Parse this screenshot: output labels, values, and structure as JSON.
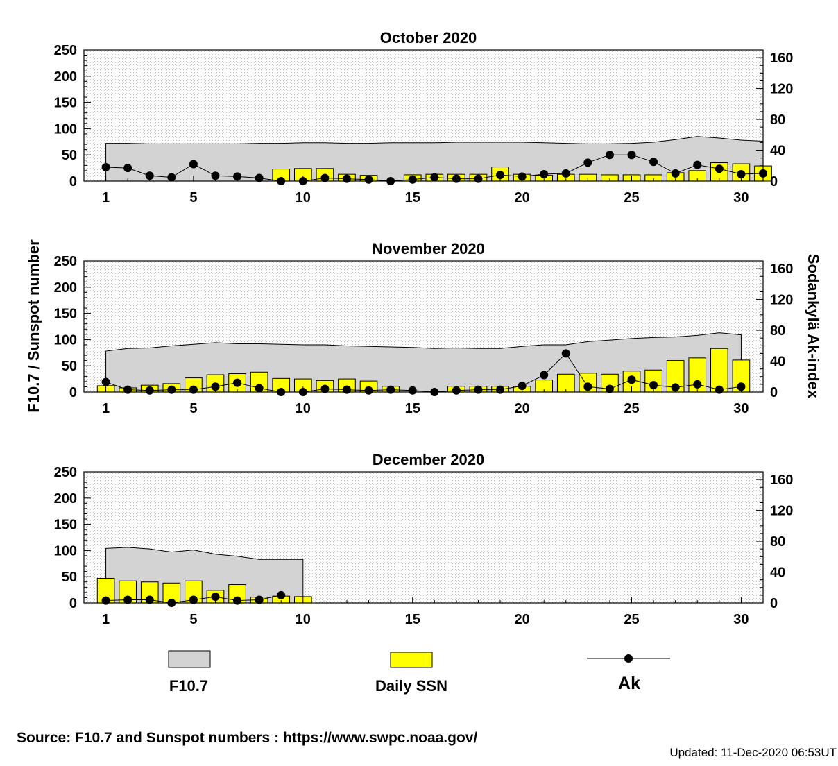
{
  "left_axis_label": "F10.7 / Sunspot number",
  "right_axis_label": "Sodankylä Ak-index",
  "left_ticks": [
    "0",
    "50",
    "100",
    "150",
    "200",
    "250"
  ],
  "right_ticks": [
    "0",
    "40",
    "80",
    "120",
    "160"
  ],
  "x_ticks": [
    "1",
    "5",
    "10",
    "15",
    "20",
    "25",
    "30"
  ],
  "legend": {
    "f107": "F10.7",
    "ssn": "Daily SSN",
    "ak": "Ak"
  },
  "colors": {
    "f107_fill": "#d3d3d3",
    "ssn_fill": "#ffff00",
    "ak_marker": "#000000",
    "grid": "#b4b4b4"
  },
  "footer": {
    "source": "Source: F10.7 and Sunspot numbers : https://www.swpc.noaa.gov/",
    "updated": "Updated: 11-Dec-2020 06:53UT"
  },
  "chart_data": [
    {
      "type": "bar",
      "title": "October  2020",
      "days_in_month": 31,
      "xlim": [
        0,
        31
      ],
      "ylim_left": [
        0,
        250
      ],
      "ylim_right": [
        0,
        170
      ],
      "series": [
        {
          "name": "F10.7",
          "type": "area",
          "values": [
            72,
            72,
            71,
            71,
            71,
            71,
            71,
            72,
            72,
            73,
            73,
            72,
            72,
            73,
            73,
            73,
            74,
            74,
            74,
            74,
            73,
            72,
            71,
            71,
            72,
            74,
            79,
            85,
            82,
            78,
            76
          ]
        },
        {
          "name": "Daily SSN",
          "type": "bar",
          "values": [
            0,
            0,
            0,
            0,
            0,
            0,
            0,
            0,
            23,
            24,
            24,
            13,
            11,
            0,
            12,
            13,
            13,
            13,
            27,
            13,
            11,
            13,
            13,
            12,
            12,
            12,
            16,
            20,
            35,
            33,
            29
          ]
        },
        {
          "name": "Ak",
          "type": "line",
          "values": [
            18,
            17,
            7,
            5,
            22,
            7,
            6,
            4,
            0,
            0,
            4,
            3,
            2,
            0,
            2,
            5,
            3,
            3,
            8,
            6,
            9,
            10,
            24,
            34,
            34,
            25,
            10,
            21,
            16,
            9,
            10
          ]
        }
      ]
    },
    {
      "type": "bar",
      "title": "November  2020",
      "days_in_month": 30,
      "xlim": [
        0,
        31
      ],
      "ylim_left": [
        0,
        250
      ],
      "ylim_right": [
        0,
        170
      ],
      "series": [
        {
          "name": "F10.7",
          "type": "area",
          "values": [
            78,
            83,
            84,
            88,
            91,
            94,
            92,
            92,
            91,
            90,
            90,
            88,
            87,
            86,
            85,
            83,
            84,
            83,
            83,
            87,
            90,
            90,
            96,
            99,
            102,
            104,
            105,
            108,
            113,
            109
          ]
        },
        {
          "name": "Daily SSN",
          "type": "bar",
          "values": [
            12,
            8,
            13,
            16,
            27,
            33,
            35,
            38,
            26,
            25,
            22,
            25,
            21,
            11,
            0,
            0,
            11,
            11,
            11,
            11,
            23,
            34,
            36,
            34,
            40,
            42,
            60,
            65,
            83,
            61
          ]
        },
        {
          "name": "Ak",
          "type": "line",
          "values": [
            13,
            3,
            2,
            3,
            3,
            7,
            12,
            5,
            0,
            0,
            4,
            3,
            2,
            3,
            2,
            0,
            2,
            3,
            3,
            8,
            22,
            50,
            7,
            4,
            16,
            9,
            6,
            10,
            3,
            7
          ]
        }
      ]
    },
    {
      "type": "bar",
      "title": "December  2020",
      "days_in_month": 31,
      "xlim": [
        0,
        31
      ],
      "ylim_left": [
        0,
        250
      ],
      "ylim_right": [
        0,
        170
      ],
      "series": [
        {
          "name": "F10.7",
          "type": "area",
          "values": [
            104,
            106,
            103,
            97,
            101,
            93,
            89,
            83,
            83,
            83
          ]
        },
        {
          "name": "Daily SSN",
          "type": "bar",
          "values": [
            47,
            42,
            40,
            38,
            42,
            24,
            35,
            11,
            13,
            12
          ]
        },
        {
          "name": "Ak",
          "type": "line",
          "values": [
            3,
            4,
            4,
            0,
            4,
            8,
            3,
            4,
            10
          ]
        }
      ]
    }
  ]
}
